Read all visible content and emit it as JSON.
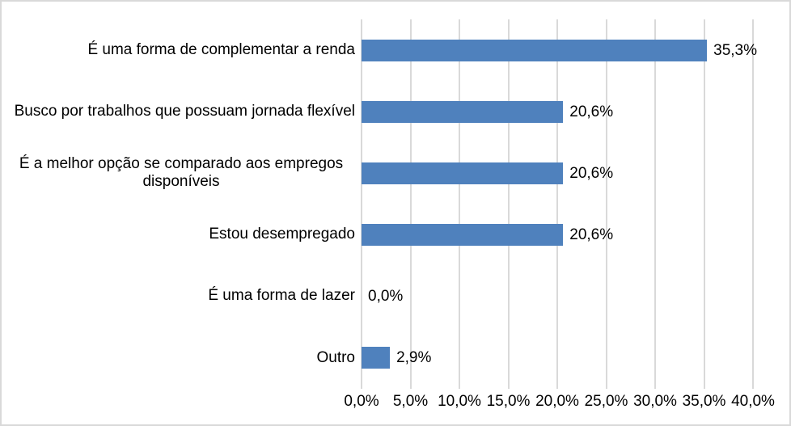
{
  "chart": {
    "accent_color": "#4F81BD",
    "gridline_color": "#D9D9D9",
    "border_color": "#D9D9D9",
    "text_color": "#000000",
    "background_color": "#FFFFFF"
  },
  "chart_data": {
    "type": "bar",
    "orientation": "horizontal",
    "title": "",
    "xlabel": "",
    "ylabel": "",
    "grid": true,
    "legend": false,
    "categories": [
      "É uma forma de complementar a renda",
      "Busco por trabalhos que possuam jornada flexível",
      "É a melhor opção se comparado aos empregos disponíveis",
      "Estou desempregado",
      "É uma forma de lazer",
      "Outro"
    ],
    "values": [
      35.3,
      20.6,
      20.6,
      20.6,
      0.0,
      2.9
    ],
    "value_labels": [
      "35,3%",
      "20,6%",
      "20,6%",
      "20,6%",
      "0,0%",
      "2,9%"
    ],
    "x_axis": {
      "min": 0,
      "max": 40,
      "tick_step": 5,
      "ticks": [
        0,
        5,
        10,
        15,
        20,
        25,
        30,
        35,
        40
      ],
      "tick_labels": [
        "0,0%",
        "5,0%",
        "10,0%",
        "15,0%",
        "20,0%",
        "25,0%",
        "30,0%",
        "35,0%",
        "40,0%"
      ]
    }
  }
}
